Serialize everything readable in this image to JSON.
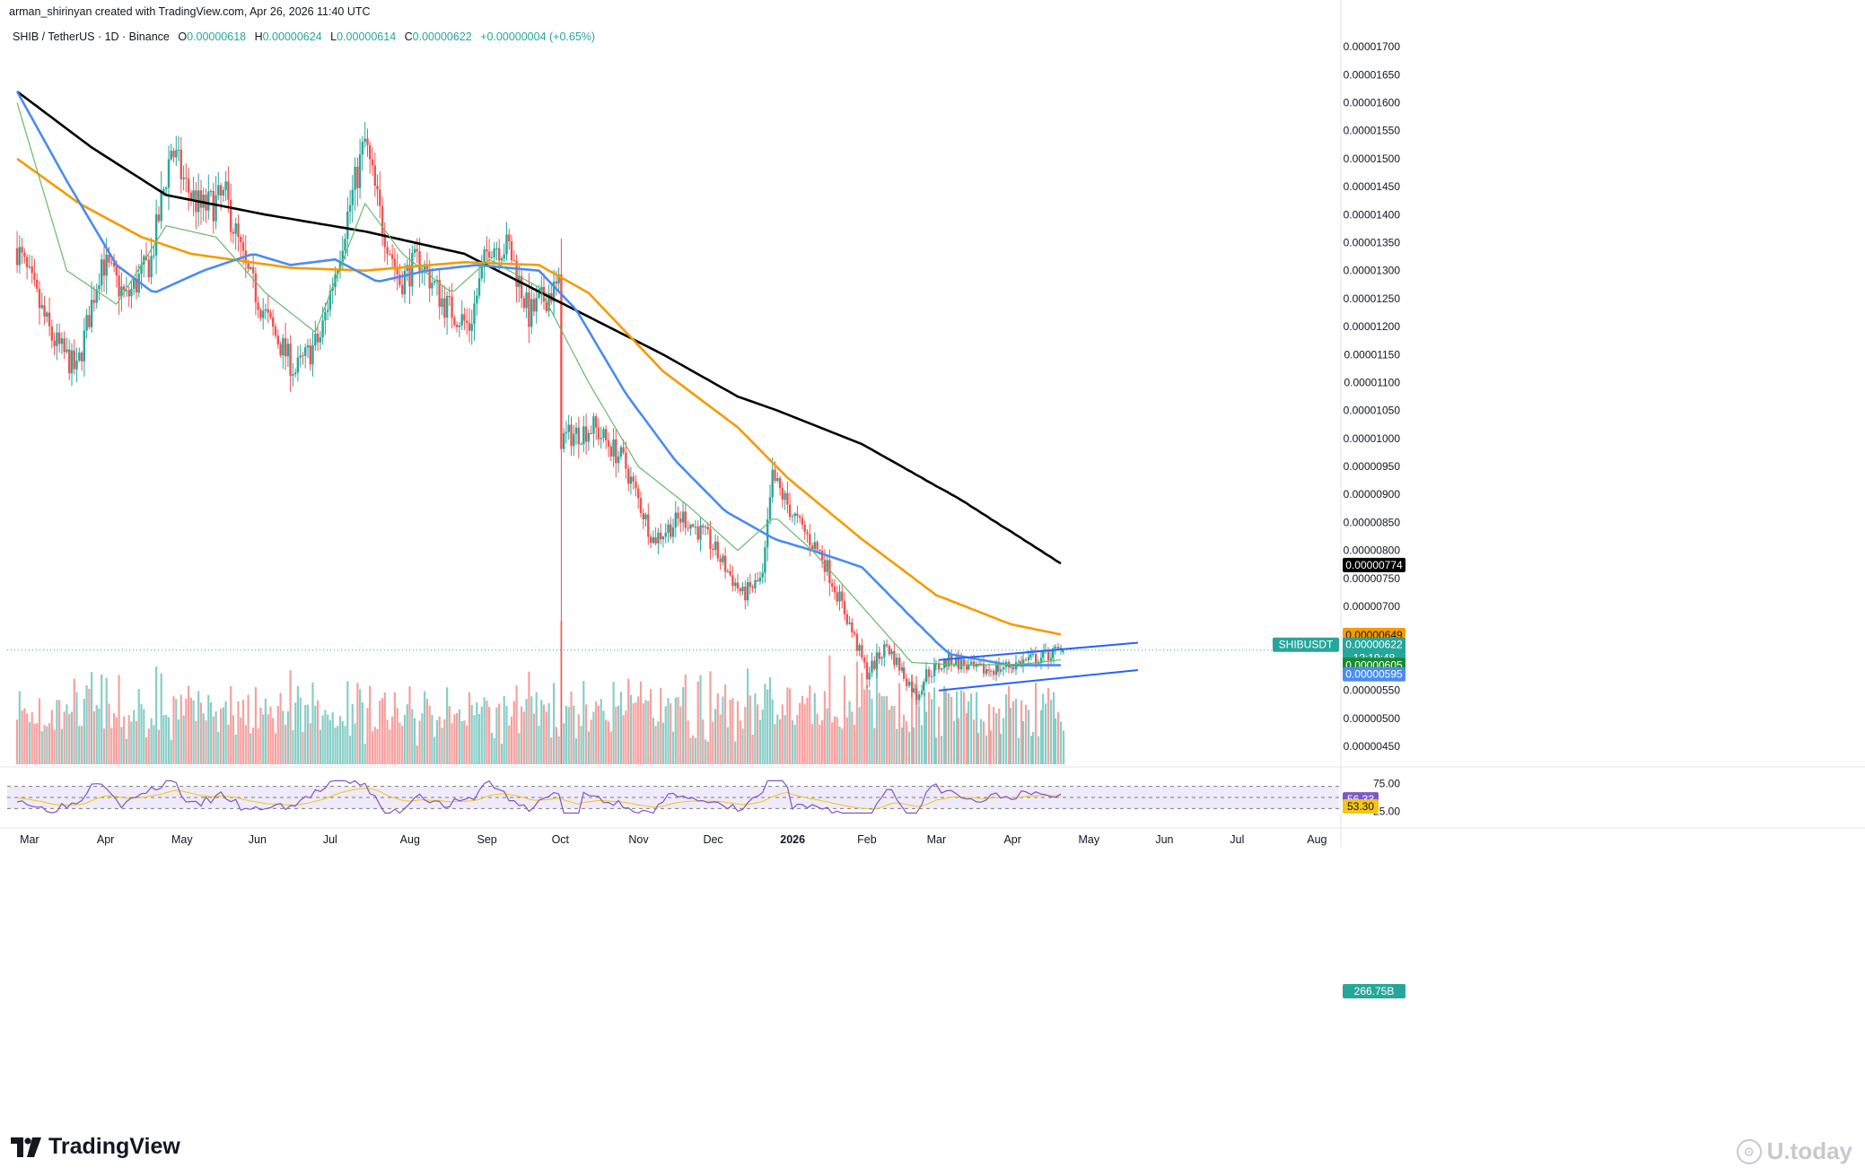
{
  "header": {
    "created_by": "arman_shirinyan created with TradingView.com, Apr 26, 2026 11:40 UTC",
    "symbol": "SHIB / TetherUS · 1D · Binance",
    "open_label": "O",
    "open": "0.00000618",
    "high_label": "H",
    "high": "0.00000624",
    "low_label": "L",
    "low": "0.00000614",
    "close_label": "C",
    "close": "0.00000622",
    "change": "+0.00000004 (+0.65%)"
  },
  "branding": {
    "logo_text": "TradingView",
    "watermark": "U.today"
  },
  "chart_data": {
    "type": "line",
    "subtype": "candlestick",
    "price_axis_labels": [
      "0.00001700",
      "0.00001650",
      "0.00001600",
      "0.00001550",
      "0.00001500",
      "0.00001450",
      "0.00001400",
      "0.00001350",
      "0.00001300",
      "0.00001250",
      "0.00001200",
      "0.00001150",
      "0.00001100",
      "0.00001050",
      "0.00001000",
      "0.00000950",
      "0.00000900",
      "0.00000850",
      "0.00000800",
      "0.00000750",
      "0.00000700",
      "0.00000650",
      "0.00000600",
      "0.00000550",
      "0.00000500",
      "0.00000450"
    ],
    "price_axis_values": [
      1.7e-05,
      1.65e-05,
      1.6e-05,
      1.55e-05,
      1.5e-05,
      1.45e-05,
      1.4e-05,
      1.35e-05,
      1.3e-05,
      1.25e-05,
      1.2e-05,
      1.15e-05,
      1.1e-05,
      1.05e-05,
      1e-05,
      9.5e-06,
      9e-06,
      8.5e-06,
      8e-06,
      7.5e-06,
      7e-06,
      6.5e-06,
      6e-06,
      5.5e-06,
      5e-06,
      4.5e-06
    ],
    "ylim": [
      4.18e-06,
      1.745e-05
    ],
    "time_axis": [
      {
        "label": "Mar",
        "day": 0
      },
      {
        "label": "Apr",
        "day": 31
      },
      {
        "label": "May",
        "day": 61
      },
      {
        "label": "Jun",
        "day": 92
      },
      {
        "label": "Jul",
        "day": 122
      },
      {
        "label": "Aug",
        "day": 153
      },
      {
        "label": "Sep",
        "day": 184
      },
      {
        "label": "Oct",
        "day": 214
      },
      {
        "label": "Nov",
        "day": 245
      },
      {
        "label": "Dec",
        "day": 275
      },
      {
        "label": "2026",
        "day": 306
      },
      {
        "label": "Feb",
        "day": 337
      },
      {
        "label": "Mar",
        "day": 365
      },
      {
        "label": "Apr",
        "day": 396
      },
      {
        "label": "May",
        "day": 426
      },
      {
        "label": "Jun",
        "day": 457
      },
      {
        "label": "Jul",
        "day": 487
      },
      {
        "label": "Aug",
        "day": 518
      }
    ],
    "xlim_days": [
      -4,
      532
    ],
    "last_day": 421,
    "price_anchors": [
      [
        0,
        1.34e-05
      ],
      [
        14,
        1.18e-05
      ],
      [
        24,
        1.12e-05
      ],
      [
        34,
        1.32e-05
      ],
      [
        44,
        1.25e-05
      ],
      [
        54,
        1.32e-05
      ],
      [
        62,
        1.52e-05
      ],
      [
        68,
        1.45e-05
      ],
      [
        74,
        1.41e-05
      ],
      [
        84,
        1.43e-05
      ],
      [
        92,
        1.3e-05
      ],
      [
        102,
        1.2e-05
      ],
      [
        112,
        1.12e-05
      ],
      [
        122,
        1.18e-05
      ],
      [
        132,
        1.38e-05
      ],
      [
        140,
        1.53e-05
      ],
      [
        146,
        1.4e-05
      ],
      [
        154,
        1.28e-05
      ],
      [
        162,
        1.32e-05
      ],
      [
        172,
        1.24e-05
      ],
      [
        182,
        1.2e-05
      ],
      [
        190,
        1.35e-05
      ],
      [
        198,
        1.34e-05
      ],
      [
        206,
        1.22e-05
      ],
      [
        214,
        1.26e-05
      ],
      [
        218,
        1.27e-05
      ],
      [
        219,
        1e-05
      ],
      [
        232,
        1.02e-05
      ],
      [
        244,
        9.6e-06
      ],
      [
        256,
        8.2e-06
      ],
      [
        268,
        8.6e-06
      ],
      [
        278,
        8.2e-06
      ],
      [
        292,
        7.2e-06
      ],
      [
        300,
        7.5e-06
      ],
      [
        304,
        9.3e-06
      ],
      [
        314,
        8.5e-06
      ],
      [
        324,
        7.9e-06
      ],
      [
        334,
        6.8e-06
      ],
      [
        342,
        5.8e-06
      ],
      [
        350,
        6.3e-06
      ],
      [
        362,
        5.4e-06
      ],
      [
        366,
        5.8e-06
      ],
      [
        376,
        6.05e-06
      ],
      [
        386,
        5.85e-06
      ],
      [
        396,
        5.9e-06
      ],
      [
        404,
        6e-06
      ],
      [
        412,
        6.1e-06
      ],
      [
        421,
        6.22e-06
      ]
    ],
    "series": [
      {
        "name": "",
        "color": "#000000",
        "anchors": [
          [
            0,
            1.62e-05
          ],
          [
            30,
            1.52e-05
          ],
          [
            60,
            1.435e-05
          ],
          [
            100,
            1.4e-05
          ],
          [
            140,
            1.37e-05
          ],
          [
            180,
            1.33e-05
          ],
          [
            220,
            1.24e-05
          ],
          [
            260,
            1.15e-05
          ],
          [
            290,
            1.075e-05
          ],
          [
            306,
            1.05e-05
          ],
          [
            340,
            9.9e-06
          ],
          [
            380,
            8.9e-06
          ],
          [
            421,
            7.74e-06
          ]
        ]
      },
      {
        "name": "",
        "color": "#f59b00",
        "anchors": [
          [
            0,
            1.5e-05
          ],
          [
            25,
            1.42e-05
          ],
          [
            50,
            1.36e-05
          ],
          [
            70,
            1.33e-05
          ],
          [
            110,
            1.305e-05
          ],
          [
            140,
            1.3e-05
          ],
          [
            180,
            1.315e-05
          ],
          [
            210,
            1.31e-05
          ],
          [
            230,
            1.26e-05
          ],
          [
            260,
            1.12e-05
          ],
          [
            290,
            1.02e-05
          ],
          [
            310,
            9.3e-06
          ],
          [
            340,
            8.2e-06
          ],
          [
            370,
            7.2e-06
          ],
          [
            400,
            6.68e-06
          ],
          [
            421,
            6.49e-06
          ]
        ]
      },
      {
        "name": "",
        "color": "#4a8cf0",
        "anchors": [
          [
            0,
            1.62e-05
          ],
          [
            20,
            1.46e-05
          ],
          [
            40,
            1.31e-05
          ],
          [
            55,
            1.26e-05
          ],
          [
            75,
            1.3e-05
          ],
          [
            95,
            1.33e-05
          ],
          [
            110,
            1.31e-05
          ],
          [
            128,
            1.32e-05
          ],
          [
            145,
            1.28e-05
          ],
          [
            165,
            1.3e-05
          ],
          [
            185,
            1.31e-05
          ],
          [
            210,
            1.3e-05
          ],
          [
            225,
            1.23e-05
          ],
          [
            245,
            1.08e-05
          ],
          [
            265,
            9.6e-06
          ],
          [
            285,
            8.7e-06
          ],
          [
            305,
            8.2e-06
          ],
          [
            320,
            8e-06
          ],
          [
            340,
            7.7e-06
          ],
          [
            360,
            6.8e-06
          ],
          [
            375,
            6.15e-06
          ],
          [
            400,
            5.95e-06
          ],
          [
            421,
            5.95e-06
          ]
        ]
      },
      {
        "name": "",
        "color": "#66bb6a",
        "anchors": [
          [
            0,
            1.6e-05
          ],
          [
            20,
            1.3e-05
          ],
          [
            40,
            1.24e-05
          ],
          [
            60,
            1.38e-05
          ],
          [
            80,
            1.36e-05
          ],
          [
            100,
            1.26e-05
          ],
          [
            120,
            1.19e-05
          ],
          [
            140,
            1.42e-05
          ],
          [
            155,
            1.33e-05
          ],
          [
            175,
            1.26e-05
          ],
          [
            190,
            1.32e-05
          ],
          [
            210,
            1.27e-05
          ],
          [
            230,
            1.1e-05
          ],
          [
            250,
            9.5e-06
          ],
          [
            270,
            8.8e-06
          ],
          [
            290,
            8e-06
          ],
          [
            305,
            8.6e-06
          ],
          [
            320,
            8e-06
          ],
          [
            340,
            7e-06
          ],
          [
            360,
            6e-06
          ],
          [
            380,
            5.95e-06
          ],
          [
            405,
            5.97e-06
          ],
          [
            421,
            6.05e-06
          ]
        ]
      }
    ],
    "price_labels": [
      {
        "value": 7.74e-06,
        "text": "0.00000774",
        "bg": "#000000",
        "fg": "#ffffff"
      },
      {
        "value": 6.49e-06,
        "text": "0.00000649",
        "bg": "#f59b00",
        "fg": "#131722"
      },
      {
        "value": 6.22e-06,
        "text": "0.00000622",
        "bg": "#26a69a",
        "fg": "#ffffff",
        "sub": "12:19:48"
      },
      {
        "value": 6.05e-06,
        "text": "0.00000605",
        "bg": "#1b8a2e",
        "fg": "#ffffff"
      },
      {
        "value": 5.95e-06,
        "text": "0.00000595",
        "bg": "#4a8cf0",
        "fg": "#ffffff"
      }
    ],
    "symbol_tag": "SHIBUSDT",
    "channel": {
      "upper": [
        [
          371,
          6.044e-06
        ],
        [
          451,
          6.352e-06
        ]
      ],
      "lower": [
        [
          371,
          5.499e-06
        ],
        [
          451,
          5.863e-06
        ]
      ],
      "color": "#2962ff"
    },
    "volume_label": "266.75B",
    "rsi": {
      "upper_level": "75.00",
      "lower_level": "25.00",
      "upper_value": 75,
      "lower_value": 25,
      "rsi_value": "56.33",
      "ma_value": "53.30",
      "rsi_value_num": 56.33,
      "ma_value_num": 53.3,
      "rsi_color": "#7e57c2",
      "ma_color": "#f5c518"
    },
    "colors": {
      "up": "#26a69a",
      "down": "#ef5350"
    }
  }
}
